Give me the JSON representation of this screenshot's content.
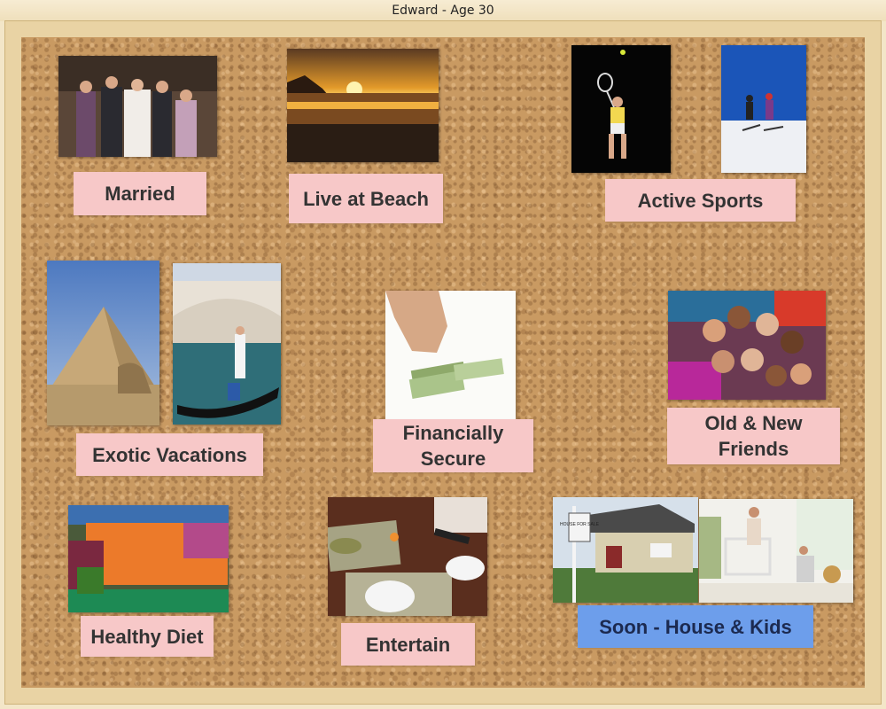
{
  "window": {
    "title": "Edward - Age 30"
  },
  "board": {
    "labels": {
      "married": "Married",
      "beach": "Live at Beach",
      "sports": "Active Sports",
      "vacations": "Exotic Vacations",
      "financial": "Financially Secure",
      "friends": "Old & New Friends",
      "diet": "Healthy Diet",
      "entertain": "Entertain",
      "house_kids": "Soon - House & Kids"
    },
    "sign_text": "HOUSE FOR SALE"
  },
  "colors": {
    "label_pink": "#f7c8c8",
    "label_blue": "#6d9eeb",
    "frame_wood": "#e9d3a4",
    "cork": "#c99a62"
  }
}
